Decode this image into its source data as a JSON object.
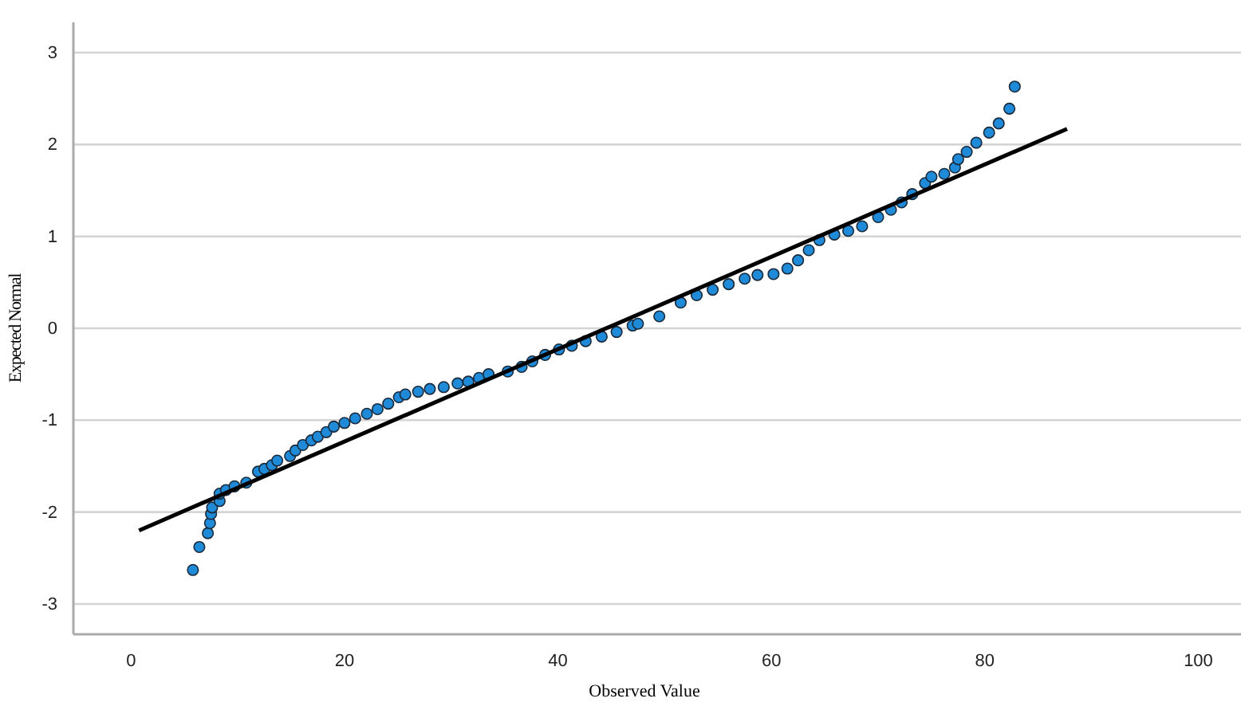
{
  "chart_data": {
    "type": "scatter",
    "xlabel": "Observed Value",
    "ylabel": "Expected Normal",
    "xlim": [
      -5.4,
      104
    ],
    "ylim": [
      -3.33,
      3.33
    ],
    "xticks": [
      0,
      20,
      40,
      60,
      80,
      100
    ],
    "yticks": [
      -3,
      -2,
      -1,
      0,
      1,
      2,
      3
    ],
    "grid": "y",
    "line_style": "solid",
    "series": [
      {
        "marker": "circle",
        "color": "#1f8ad8",
        "x": [
          5.8,
          6.4,
          7.2,
          7.4,
          7.5,
          7.6,
          8.3,
          8.3,
          8.9,
          9.7,
          10.8,
          11.9,
          12.5,
          13.2,
          13.7,
          14.9,
          15.4,
          16.1,
          16.9,
          17.5,
          18.3,
          19.0,
          20.0,
          21.0,
          22.1,
          23.1,
          24.1,
          25.1,
          25.7,
          26.9,
          28.0,
          29.3,
          30.6,
          31.6,
          32.6,
          33.5,
          35.3,
          36.6,
          37.6,
          38.8,
          40.1,
          41.3,
          42.6,
          44.1,
          45.5,
          47.0,
          47.5,
          49.5,
          51.5,
          53.0,
          54.5,
          56.0,
          57.5,
          58.7,
          60.2,
          61.5,
          62.5,
          63.5,
          64.5,
          65.9,
          67.2,
          68.5,
          70.0,
          71.2,
          72.2,
          73.2,
          74.4,
          75.0,
          76.2,
          77.2,
          77.5,
          78.3,
          79.2,
          80.4,
          81.3,
          82.3,
          82.8
        ],
        "values": [
          -2.63,
          -2.38,
          -2.23,
          -2.12,
          -2.02,
          -1.95,
          -1.88,
          -1.8,
          -1.76,
          -1.72,
          -1.68,
          -1.56,
          -1.53,
          -1.49,
          -1.44,
          -1.39,
          -1.33,
          -1.27,
          -1.22,
          -1.18,
          -1.13,
          -1.07,
          -1.03,
          -0.98,
          -0.93,
          -0.88,
          -0.82,
          -0.75,
          -0.72,
          -0.69,
          -0.66,
          -0.64,
          -0.6,
          -0.58,
          -0.54,
          -0.5,
          -0.47,
          -0.42,
          -0.36,
          -0.29,
          -0.23,
          -0.19,
          -0.14,
          -0.09,
          -0.04,
          0.03,
          0.05,
          0.13,
          0.28,
          0.36,
          0.42,
          0.48,
          0.54,
          0.58,
          0.59,
          0.65,
          0.74,
          0.85,
          0.96,
          1.02,
          1.06,
          1.11,
          1.21,
          1.29,
          1.37,
          1.46,
          1.58,
          1.65,
          1.68,
          1.75,
          1.84,
          1.92,
          2.02,
          2.13,
          2.23,
          2.39,
          2.63
        ]
      },
      {
        "type": "line",
        "marker": "none",
        "color": "#000000",
        "x": [
          0.75,
          87.7
        ],
        "values": [
          -2.2,
          2.17
        ]
      }
    ]
  }
}
